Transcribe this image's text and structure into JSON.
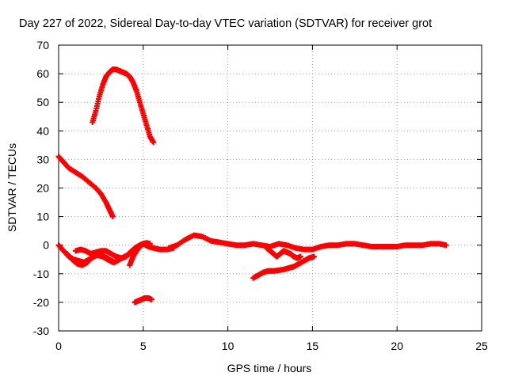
{
  "chart_data": {
    "type": "scatter",
    "title": "Day 227 of 2022, Sidereal Day-to-day VTEC variation (SDTVAR) for receiver grot",
    "xlabel": "GPS time / hours",
    "ylabel": "SDTVAR / TECUs",
    "xlim": [
      0,
      25
    ],
    "ylim": [
      -30,
      70
    ],
    "xticks": [
      0,
      5,
      10,
      15,
      20,
      25
    ],
    "yticks": [
      -30,
      -20,
      -10,
      0,
      10,
      20,
      30,
      40,
      50,
      60,
      70
    ],
    "grid": true,
    "marker": "plus",
    "color": "#ff0000",
    "series": [
      {
        "name": "arc-high",
        "x": [
          2.0,
          2.2,
          2.4,
          2.6,
          2.8,
          3.0,
          3.2,
          3.4,
          3.6,
          3.8,
          4.0,
          4.2,
          4.4,
          4.6,
          4.8,
          5.0,
          5.2,
          5.4,
          5.6
        ],
        "y": [
          43,
          47,
          52,
          56,
          59,
          60.5,
          61.5,
          61.5,
          61,
          60.5,
          60,
          59,
          57,
          54,
          50,
          46,
          42,
          38,
          36
        ]
      },
      {
        "name": "arc-decline",
        "x": [
          0,
          0.3,
          0.6,
          1.0,
          1.4,
          1.8,
          2.2,
          2.5,
          2.8,
          3.0,
          3.2
        ],
        "y": [
          31,
          29,
          27,
          25.5,
          24,
          22,
          20,
          18,
          15,
          12.5,
          10
        ]
      },
      {
        "name": "arc-low-a",
        "x": [
          0,
          0.3,
          0.6,
          0.9,
          1.2,
          1.5,
          1.8,
          2.1,
          2.4,
          2.7,
          3.0,
          3.3,
          3.6,
          3.9,
          4.2,
          4.5,
          4.8,
          5.0,
          5.3,
          5.6,
          6.0,
          6.4,
          6.8
        ],
        "y": [
          0,
          -2,
          -4,
          -5,
          -5.5,
          -6,
          -5,
          -4,
          -3,
          -4,
          -5,
          -6,
          -5,
          -4,
          -3,
          -1,
          0,
          0.5,
          -0.5,
          -1,
          -1.5,
          -1.5,
          -1
        ]
      },
      {
        "name": "arc-low-b",
        "x": [
          0.5,
          0.8,
          1.1,
          1.4,
          1.7,
          2.0,
          2.3,
          2.6,
          2.9,
          3.2
        ],
        "y": [
          -3,
          -5,
          -6.5,
          -7,
          -6,
          -4,
          -3.5,
          -4,
          -5,
          -6
        ]
      },
      {
        "name": "arc-low-c",
        "x": [
          1.0,
          1.3,
          1.6,
          1.9,
          2.2,
          2.5,
          2.8,
          3.1,
          3.4,
          3.7,
          4.0,
          4.3
        ],
        "y": [
          -2,
          -1.5,
          -2,
          -3,
          -2.5,
          -2,
          -2,
          -3,
          -4,
          -4.5,
          -4,
          -2
        ]
      },
      {
        "name": "arc-low-d",
        "x": [
          4.2,
          4.4,
          4.6,
          4.8,
          5.0,
          5.2,
          5.4
        ],
        "y": [
          -7,
          -4,
          -2,
          -0.5,
          0.5,
          0.8,
          0.5
        ]
      },
      {
        "name": "arc-main",
        "x": [
          6.5,
          7.0,
          7.5,
          8.0,
          8.5,
          9.0,
          9.5,
          10.0,
          10.5,
          11.0,
          11.5,
          12.0,
          12.5,
          13.0,
          13.5,
          14.0,
          14.5,
          15.0,
          15.5,
          16.0,
          16.5,
          17.0,
          17.5,
          18.0,
          18.5,
          19.0,
          19.5,
          20.0,
          20.5,
          21.0,
          21.5,
          22.0,
          22.5,
          22.9
        ],
        "y": [
          -1,
          0,
          2,
          3.5,
          3,
          1.5,
          1,
          0.5,
          0,
          0,
          0.5,
          0,
          -0.5,
          0.5,
          0,
          -1,
          -1.5,
          -1.5,
          -0.5,
          0,
          0,
          0.5,
          0.5,
          0,
          -0.5,
          -0.5,
          -0.5,
          -0.5,
          0,
          0,
          0,
          0.5,
          0.5,
          0
        ]
      },
      {
        "name": "arc-dip",
        "x": [
          12.3,
          12.5,
          12.7,
          12.9,
          13.1,
          13.3,
          13.5,
          13.7,
          13.9,
          14.1,
          14.3
        ],
        "y": [
          -1,
          -2,
          -3,
          -4,
          -3,
          -2,
          -2.5,
          -3,
          -4,
          -4.5,
          -4
        ]
      },
      {
        "name": "arc-rise",
        "x": [
          11.5,
          11.8,
          12.1,
          12.4,
          12.7,
          13.0,
          13.3,
          13.6,
          13.9,
          14.2,
          14.5,
          14.8,
          15.1
        ],
        "y": [
          -11.5,
          -10.5,
          -9.5,
          -9,
          -9,
          -8.8,
          -8.5,
          -8,
          -7.5,
          -6.5,
          -5.5,
          -4.5,
          -4
        ]
      },
      {
        "name": "arc-bottom",
        "x": [
          4.5,
          4.7,
          4.9,
          5.1,
          5.3,
          5.5
        ],
        "y": [
          -20,
          -19.5,
          -19,
          -18.5,
          -18.5,
          -19
        ]
      }
    ]
  }
}
